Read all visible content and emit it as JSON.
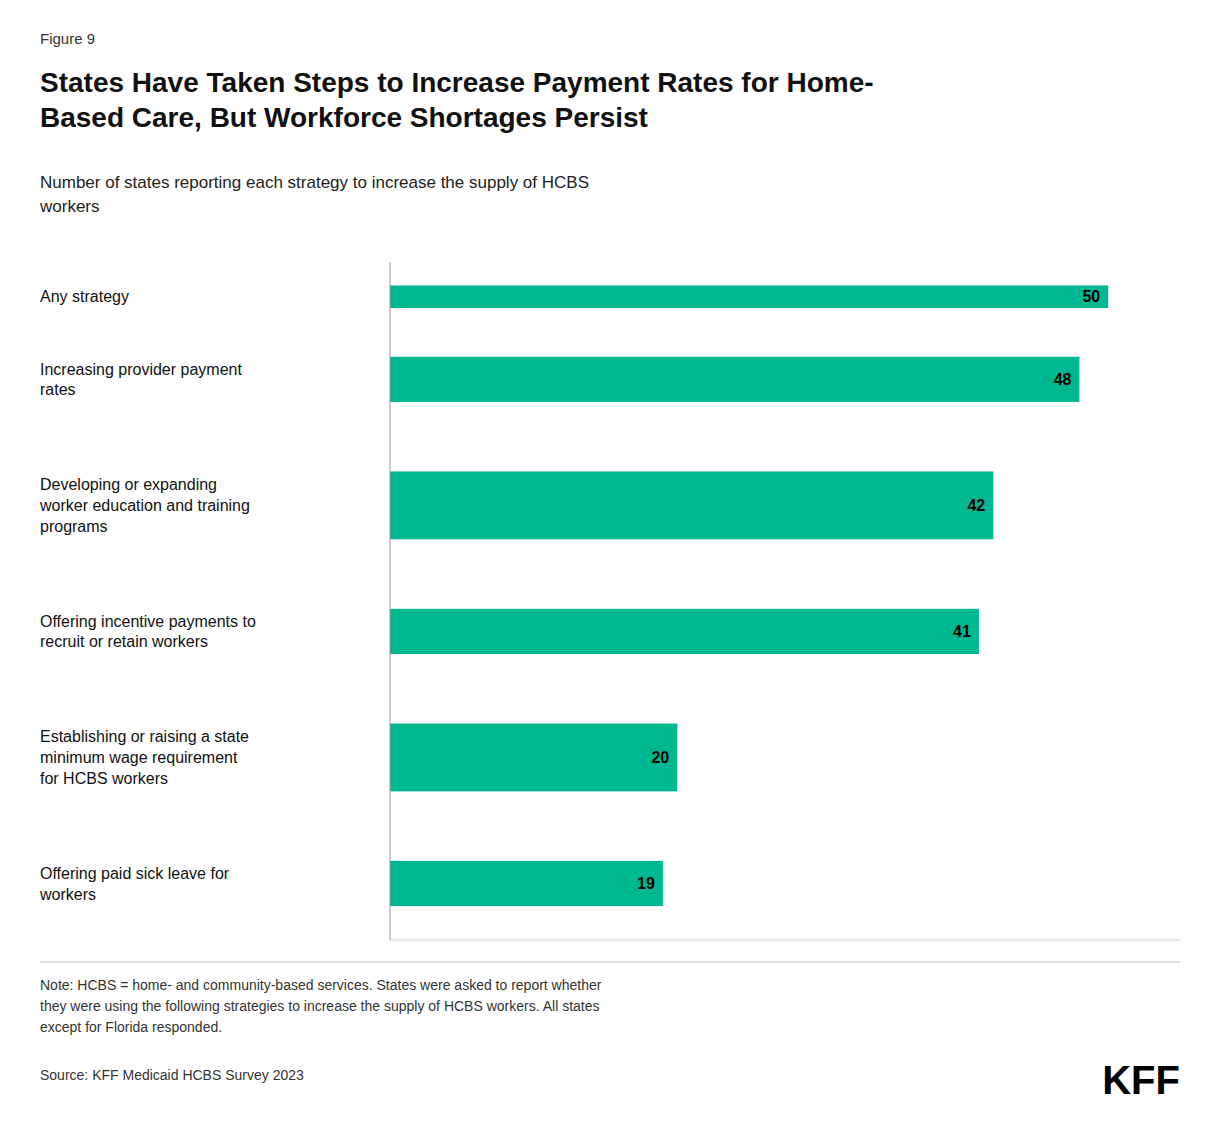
{
  "chart_data": {
    "type": "bar",
    "orientation": "horizontal",
    "title": "States Have Taken Steps to Increase Payment Rates for Home-\nBased Care, But Workforce Shortages Persist",
    "subtitle": "Number of states reporting each strategy to increase the supply of HCBS\nworkers",
    "annotations": [
      "Figure 9",
      "Note: HCBS = home- and community-based services. States were asked to report whether\nthey were using the following strategies to increase the supply of HCBS workers. All states\nexcept for Florida responded.",
      "Source: KFF Medicaid HCBS Survey 2023",
      "KFF"
    ],
    "categories": [
      "Any strategy",
      "Increasing provider payment\nrates",
      "Developing or expanding\nworker education and training\nprograms",
      "Offering incentive payments to\nrecruit or retain workers",
      "Establishing or raising a state\nminimum wage requirement\nfor HCBS workers",
      "Offering paid sick leave for\nworkers"
    ],
    "values": [
      50,
      48,
      42,
      41,
      20,
      19
    ],
    "color": "#00B890",
    "xlim": [
      0,
      55
    ],
    "data_labels": true,
    "tick_labels": false,
    "grid": false
  }
}
